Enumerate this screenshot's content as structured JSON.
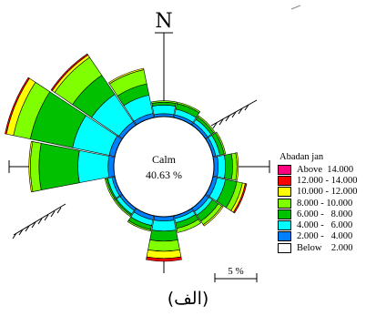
{
  "figure": {
    "caption": "(الف)"
  },
  "chart_data": {
    "type": "windrose",
    "north_label": "N",
    "station": "Abadan jan",
    "calm": {
      "label": "Calm",
      "value_text": "40.63 %"
    },
    "scale_bar_label": "5 %",
    "sectors": 16,
    "bins": [
      {
        "label": "Above  14.000",
        "color": "#ff0080"
      },
      {
        "label": "12.000 - 14.000",
        "color": "#ff0000"
      },
      {
        "label": "10.000 - 12.000",
        "color": "#ffff00"
      },
      {
        "label": "8.000 - 10.000",
        "color": "#80ff00"
      },
      {
        "label": "6.000 -   8.000",
        "color": "#00c000"
      },
      {
        "label": "4.000 -   6.000",
        "color": "#00ffff"
      },
      {
        "label": "2.000 -   4.000",
        "color": "#0080ff"
      },
      {
        "label": "Below    2.000",
        "color": "#ffffff"
      }
    ],
    "series_order_from_center": [
      "2.000 -   4.000",
      "4.000 -   6.000",
      "6.000 -   8.000",
      "8.000 - 10.000",
      "10.000 - 12.000",
      "12.000 - 14.000",
      "Above  14.000"
    ],
    "directions": [
      "N",
      "NNE",
      "NE",
      "ENE",
      "E",
      "ESE",
      "SE",
      "SSE",
      "S",
      "SSW",
      "SW",
      "WSW",
      "W",
      "WNW",
      "NW",
      "NNW"
    ],
    "cumulative_percent": [
      [
        0.2,
        0.8,
        1.0,
        1.1,
        1.1,
        1.1,
        1.1
      ],
      [
        0.2,
        0.6,
        1.0,
        1.1,
        1.1,
        1.1,
        1.1
      ],
      [
        0.2,
        0.5,
        0.7,
        0.8,
        0.8,
        0.8,
        0.8
      ],
      [
        0.2,
        0.5,
        0.8,
        0.9,
        0.9,
        0.9,
        0.9
      ],
      [
        0.3,
        0.8,
        1.3,
        1.6,
        1.7,
        1.7,
        1.7
      ],
      [
        0.3,
        0.9,
        1.7,
        2.1,
        2.3,
        2.4,
        2.4
      ],
      [
        0.3,
        0.6,
        1.1,
        1.4,
        1.5,
        1.5,
        1.5
      ],
      [
        0.2,
        0.5,
        0.9,
        1.2,
        1.2,
        1.2,
        1.2
      ],
      [
        0.3,
        1.0,
        1.7,
        2.4,
        2.9,
        3.1,
        3.1
      ],
      [
        0.3,
        0.7,
        1.0,
        1.1,
        1.1,
        1.1,
        1.1
      ],
      [
        0.2,
        0.5,
        0.6,
        0.7,
        0.7,
        0.7,
        0.7
      ],
      [
        0.2,
        0.5,
        0.6,
        0.7,
        0.7,
        0.7,
        0.7
      ],
      [
        0.4,
        2.5,
        5.2,
        5.8,
        5.9,
        5.9,
        5.9
      ],
      [
        0.4,
        3.0,
        6.0,
        7.2,
        7.7,
        7.8,
        7.8
      ],
      [
        0.3,
        2.6,
        4.2,
        5.7,
        5.9,
        6.0,
        6.0
      ],
      [
        0.3,
        1.6,
        2.4,
        3.4,
        3.5,
        3.5,
        3.5
      ]
    ]
  }
}
